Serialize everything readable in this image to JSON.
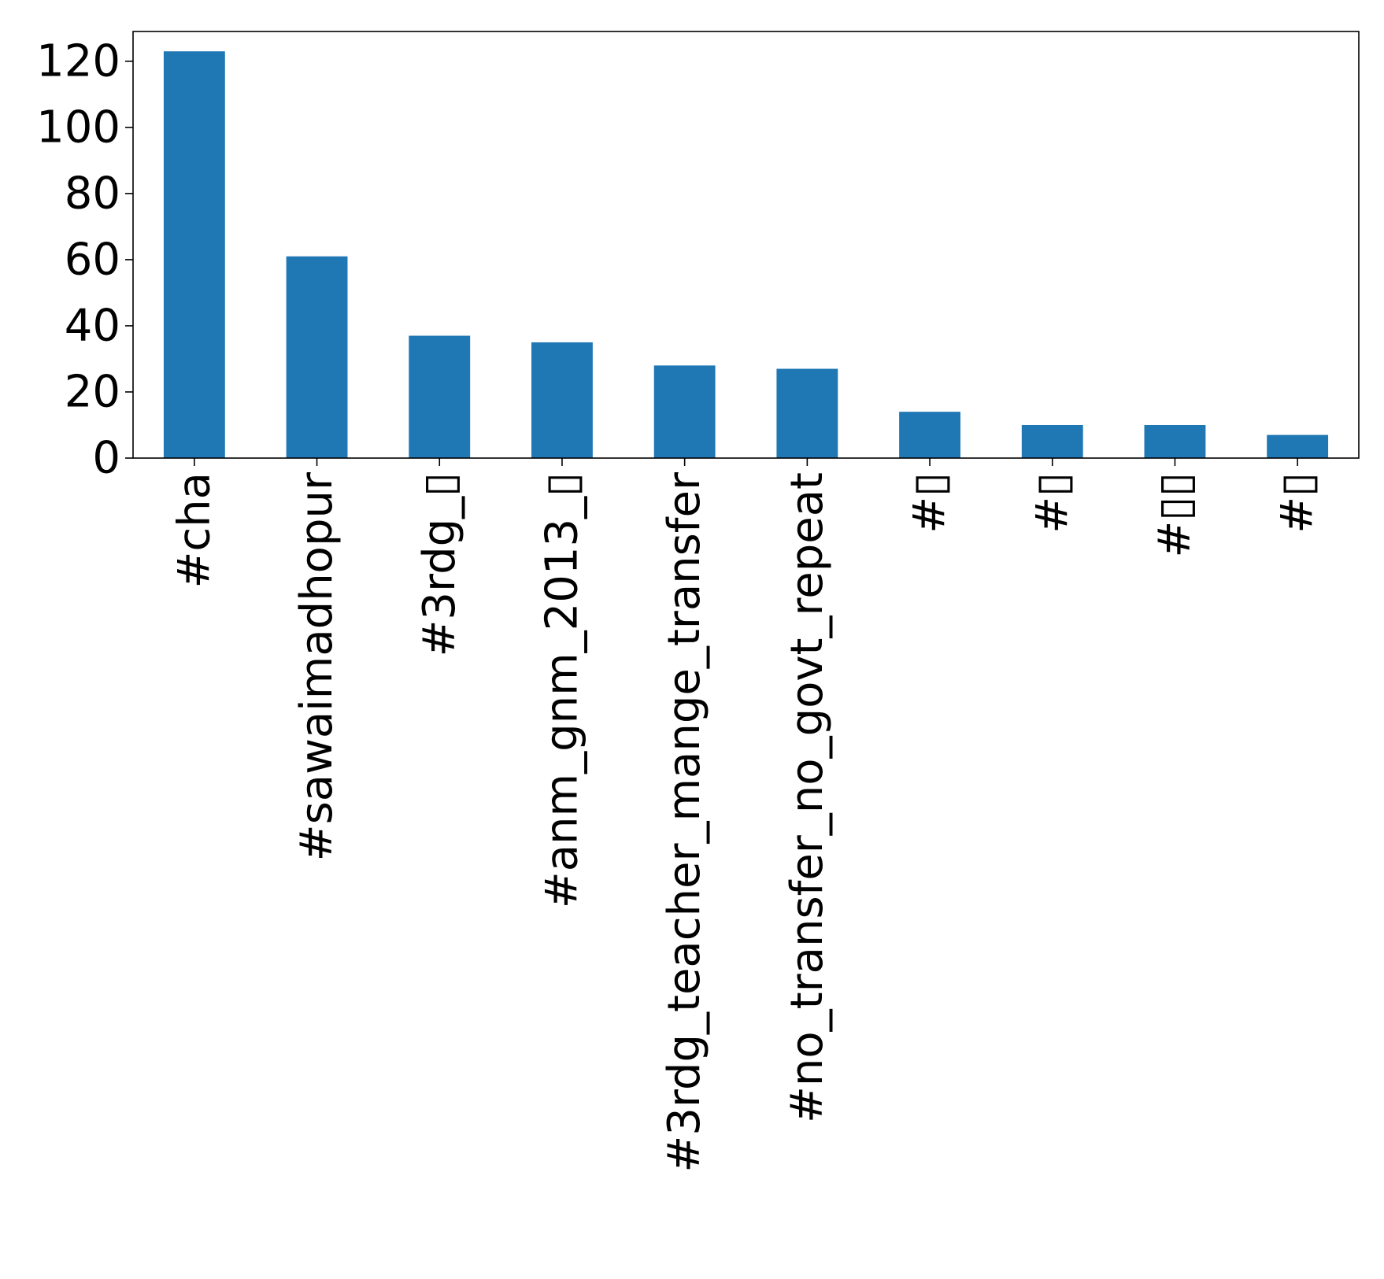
{
  "chart_data": {
    "type": "bar",
    "categories": [
      "#cha",
      "#sawaimadhopur",
      "#3rdg_▯",
      "#anm_gnm_2013_▯",
      "#3rdg_teacher_mange_transfer",
      "#no_transfer_no_govt_repeat",
      "#▯",
      "#▯",
      "#▯▯",
      "#▯"
    ],
    "values": [
      123,
      61,
      37,
      35,
      28,
      27,
      14,
      10,
      10,
      7
    ],
    "yticks": [
      "0",
      "20",
      "40",
      "60",
      "80",
      "100",
      "120"
    ],
    "ylim": [
      0,
      129
    ],
    "title": "",
    "xlabel": "",
    "ylabel": "",
    "grid": false,
    "bar_color": "#1f77b4"
  }
}
